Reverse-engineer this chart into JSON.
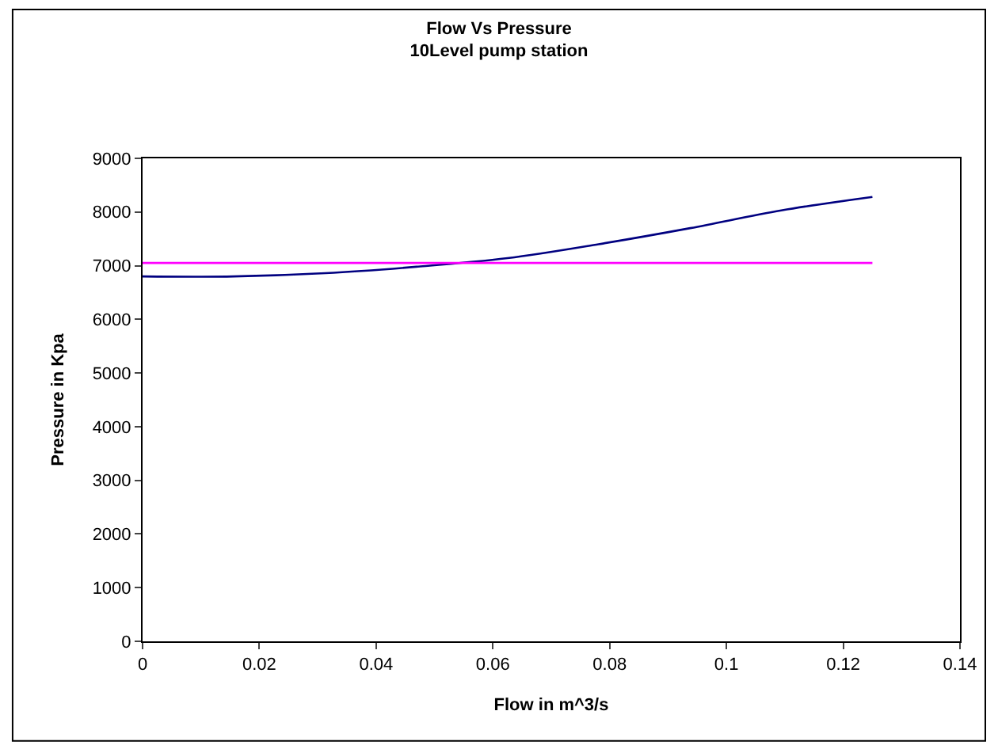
{
  "chart_data": {
    "type": "line",
    "title": "Flow Vs Pressure\n10Level pump station",
    "xlabel": "Flow in m^3/s",
    "ylabel": "Pressure in Kpa",
    "x": [
      0,
      0.0156,
      0.0313,
      0.0469,
      0.0625,
      0.0781,
      0.0938,
      0.1094,
      0.125
    ],
    "series": [
      {
        "color": "#000080",
        "values": [
          6800,
          6800,
          6860,
          6980,
          7140,
          7400,
          7700,
          8030,
          8280
        ]
      },
      {
        "color": "#ff00ff",
        "x": [
          0,
          0.125
        ],
        "values": [
          7050,
          7050
        ]
      }
    ],
    "xlim": [
      0,
      0.14
    ],
    "xticks": [
      0,
      0.02,
      0.04,
      0.06,
      0.08,
      0.1,
      0.12,
      0.14
    ],
    "ylim": [
      0,
      9000
    ],
    "yticks": [
      0,
      1000,
      2000,
      3000,
      4000,
      5000,
      6000,
      7000,
      8000,
      9000
    ],
    "grid": false,
    "marker": "none",
    "line_style": "solid"
  }
}
